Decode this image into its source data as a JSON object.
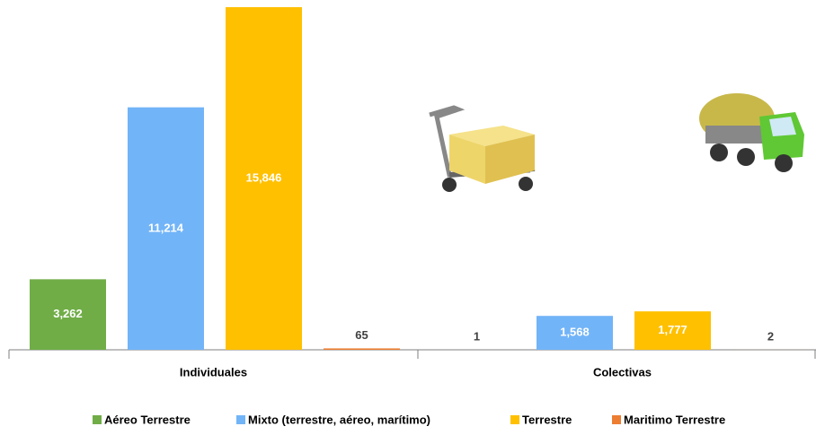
{
  "chart_data": {
    "type": "bar",
    "categories": [
      "Individuales",
      "Colectivas"
    ],
    "series": [
      {
        "name": "Aéreo Terrestre",
        "color": "#70ad47",
        "values": [
          3262,
          1
        ],
        "value_labels": [
          "3,262",
          "1"
        ]
      },
      {
        "name": "Mixto (terrestre, aéreo, marítimo)",
        "color": "#72b4f8",
        "values": [
          11214,
          1568
        ],
        "value_labels": [
          "11,214",
          "1,568"
        ]
      },
      {
        "name": "Terrestre",
        "color": "#ffc000",
        "values": [
          15846,
          1777
        ],
        "value_labels": [
          "15,846",
          "1,777"
        ]
      },
      {
        "name": "Maritimo Terrestre",
        "color": "#ed7d31",
        "values": [
          65,
          2
        ],
        "value_labels": [
          "65",
          "2"
        ]
      }
    ],
    "legend": "bottom"
  }
}
